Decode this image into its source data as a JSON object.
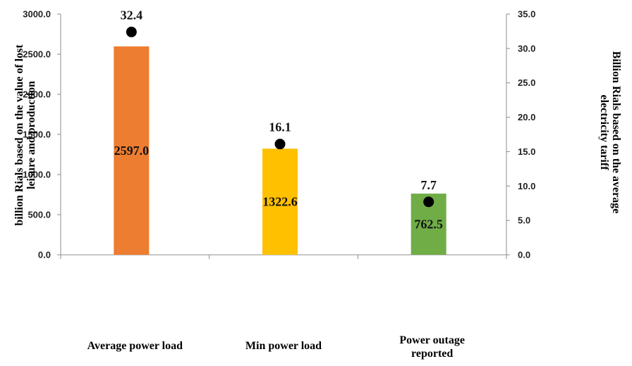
{
  "chart_data": {
    "type": "bar",
    "categories": [
      [
        "Average power load"
      ],
      [
        "Min power load"
      ],
      [
        "Power outage",
        "reported"
      ]
    ],
    "series": [
      {
        "values": [
          2597.0,
          1322.6,
          762.5
        ],
        "value_labels": [
          "2597.0",
          "1322.6",
          "762.5"
        ],
        "colors": [
          "#ED7D31",
          "#FFC000",
          "#70AD47"
        ],
        "axis": "left"
      },
      {
        "type": "scatter",
        "values": [
          32.4,
          16.1,
          7.7
        ],
        "value_labels": [
          "32.4",
          "16.1",
          "7.7"
        ],
        "color": "#000000",
        "axis": "right"
      }
    ],
    "y_left": {
      "label_lines": [
        "billion Rials based on the value of lost",
        "leisure and production"
      ],
      "ylim": [
        0,
        3000
      ],
      "ticks": [
        "0.0",
        "500.0",
        "1000.0",
        "1500.0",
        "2000.0",
        "2500.0",
        "3000.0"
      ]
    },
    "y_right": {
      "label_lines": [
        "Billion Rials based on the average",
        "electricity tariff"
      ],
      "ylim": [
        0,
        35
      ],
      "ticks": [
        "0.0",
        "5.0",
        "10.0",
        "15.0",
        "20.0",
        "25.0",
        "30.0",
        "35.0"
      ]
    },
    "grid": false,
    "legend": "none"
  }
}
